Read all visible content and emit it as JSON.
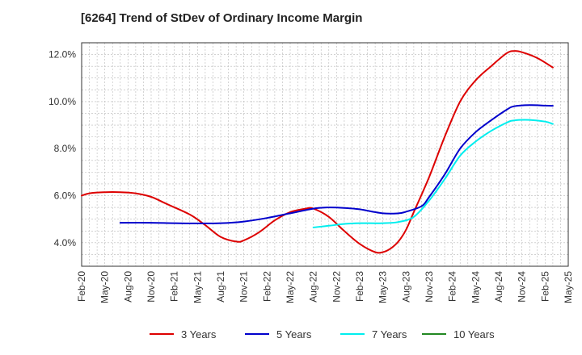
{
  "chart_data": {
    "type": "line",
    "title": "[6264]  Trend of StDev of Ordinary Income Margin",
    "xlabel": "",
    "ylabel": "",
    "x_ticks": [
      "Feb-20",
      "May-20",
      "Aug-20",
      "Nov-20",
      "Feb-21",
      "May-21",
      "Aug-21",
      "Nov-21",
      "Feb-22",
      "May-22",
      "Aug-22",
      "Nov-22",
      "Feb-23",
      "May-23",
      "Aug-23",
      "Nov-23",
      "Feb-24",
      "May-24",
      "Aug-24",
      "Nov-24",
      "Feb-25",
      "May-25"
    ],
    "y_ticks": [
      "4.0%",
      "6.0%",
      "8.0%",
      "10.0%",
      "12.0%"
    ],
    "y_tick_values": [
      4,
      6,
      8,
      10,
      12
    ],
    "ylim": [
      3.0,
      12.5
    ],
    "xlim": [
      "Feb-20",
      "May-25"
    ],
    "grid": true,
    "legend_position": "bottom",
    "series": [
      {
        "name": "3 Years",
        "color": "#dd0000",
        "points": [
          [
            "Feb-20",
            6.0
          ],
          [
            "Mar-20",
            6.1
          ],
          [
            "May-20",
            6.15
          ],
          [
            "Jul-20",
            6.15
          ],
          [
            "Sep-20",
            6.1
          ],
          [
            "Nov-20",
            5.95
          ],
          [
            "Jan-21",
            5.65
          ],
          [
            "Apr-21",
            5.2
          ],
          [
            "Jun-21",
            4.75
          ],
          [
            "Aug-21",
            4.25
          ],
          [
            "Oct-21",
            4.05
          ],
          [
            "Nov-21",
            4.1
          ],
          [
            "Jan-22",
            4.45
          ],
          [
            "Mar-22",
            4.95
          ],
          [
            "May-22",
            5.3
          ],
          [
            "Jul-22",
            5.45
          ],
          [
            "Aug-22",
            5.45
          ],
          [
            "Oct-22",
            5.1
          ],
          [
            "Dec-22",
            4.5
          ],
          [
            "Feb-23",
            3.95
          ],
          [
            "Apr-23",
            3.6
          ],
          [
            "May-23",
            3.6
          ],
          [
            "Jun-23",
            3.75
          ],
          [
            "Jul-23",
            4.05
          ],
          [
            "Aug-23",
            4.55
          ],
          [
            "Sep-23",
            5.3
          ],
          [
            "Nov-23",
            6.8
          ],
          [
            "Jan-24",
            8.5
          ],
          [
            "Mar-24",
            10.0
          ],
          [
            "May-24",
            10.9
          ],
          [
            "Jul-24",
            11.5
          ],
          [
            "Sep-24",
            12.05
          ],
          [
            "Oct-24",
            12.15
          ],
          [
            "Nov-24",
            12.1
          ],
          [
            "Jan-25",
            11.85
          ],
          [
            "Mar-25",
            11.45
          ]
        ]
      },
      {
        "name": "5 Years",
        "color": "#0000cc",
        "points": [
          [
            "Jul-20",
            4.85
          ],
          [
            "Nov-20",
            4.85
          ],
          [
            "Feb-21",
            4.83
          ],
          [
            "May-21",
            4.82
          ],
          [
            "Aug-21",
            4.83
          ],
          [
            "Nov-21",
            4.9
          ],
          [
            "Feb-22",
            5.05
          ],
          [
            "May-22",
            5.25
          ],
          [
            "Aug-22",
            5.45
          ],
          [
            "Oct-22",
            5.5
          ],
          [
            "Dec-22",
            5.48
          ],
          [
            "Feb-23",
            5.42
          ],
          [
            "May-23",
            5.25
          ],
          [
            "Jul-23",
            5.25
          ],
          [
            "Aug-23",
            5.32
          ],
          [
            "Oct-23",
            5.55
          ],
          [
            "Nov-23",
            5.95
          ],
          [
            "Jan-24",
            6.9
          ],
          [
            "Mar-24",
            8.0
          ],
          [
            "May-24",
            8.7
          ],
          [
            "Jul-24",
            9.2
          ],
          [
            "Sep-24",
            9.65
          ],
          [
            "Oct-24",
            9.8
          ],
          [
            "Dec-24",
            9.85
          ],
          [
            "Feb-25",
            9.83
          ],
          [
            "Mar-25",
            9.82
          ]
        ]
      },
      {
        "name": "7 Years",
        "color": "#00eeee",
        "points": [
          [
            "Aug-22",
            4.65
          ],
          [
            "Oct-22",
            4.72
          ],
          [
            "Dec-22",
            4.8
          ],
          [
            "Feb-23",
            4.83
          ],
          [
            "May-23",
            4.83
          ],
          [
            "Jul-23",
            4.88
          ],
          [
            "Sep-23",
            5.1
          ],
          [
            "Nov-23",
            5.8
          ],
          [
            "Jan-24",
            6.7
          ],
          [
            "Mar-24",
            7.7
          ],
          [
            "May-24",
            8.3
          ],
          [
            "Jul-24",
            8.75
          ],
          [
            "Sep-24",
            9.1
          ],
          [
            "Oct-24",
            9.2
          ],
          [
            "Dec-24",
            9.22
          ],
          [
            "Feb-25",
            9.15
          ],
          [
            "Mar-25",
            9.05
          ]
        ]
      },
      {
        "name": "10 Years",
        "color": "#228822",
        "points": []
      }
    ]
  }
}
